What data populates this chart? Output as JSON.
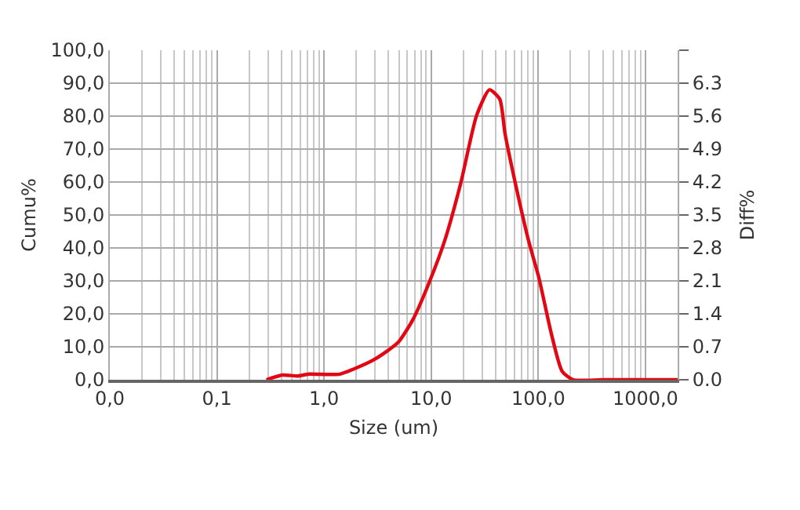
{
  "chart_data": {
    "type": "line",
    "xlabel": "Size (um)",
    "ylabel": "Cumu%",
    "y2label": "Diff%",
    "log": "x",
    "grid": true,
    "marker": "none",
    "line_style": "solid",
    "xlim": [
      0.01,
      2000
    ],
    "xticks": [
      {
        "value": 0.01,
        "label": "0,0"
      },
      {
        "value": 0.1,
        "label": "0,1"
      },
      {
        "value": 1,
        "label": "1,0"
      },
      {
        "value": 10,
        "label": "10,0"
      },
      {
        "value": 100,
        "label": "100,0"
      },
      {
        "value": 1000,
        "label": "1000,0"
      }
    ],
    "ylim": [
      0,
      100
    ],
    "yticks": [
      {
        "value": 0,
        "label": "0,0"
      },
      {
        "value": 10,
        "label": "10,0"
      },
      {
        "value": 20,
        "label": "20,0"
      },
      {
        "value": 30,
        "label": "30,0"
      },
      {
        "value": 40,
        "label": "40,0"
      },
      {
        "value": 50,
        "label": "50,0"
      },
      {
        "value": 60,
        "label": "60,0"
      },
      {
        "value": 70,
        "label": "70,0"
      },
      {
        "value": 80,
        "label": "80,0"
      },
      {
        "value": 90,
        "label": "90,0"
      },
      {
        "value": 100,
        "label": "100,0"
      }
    ],
    "y2lim": [
      0,
      7
    ],
    "y2ticks": [
      {
        "value": 0,
        "label": "0.0"
      },
      0.7,
      1.4,
      2.1,
      2.8,
      3.5,
      4.2,
      4.9,
      5.6,
      6.3,
      {
        "value": 7,
        "label": null
      }
    ],
    "series": [
      {
        "color": "#e30613",
        "axis": "y2",
        "x": [
          0.29,
          0.41,
          0.57,
          0.72,
          1.4,
          2.2,
          3.1,
          4.9,
          6.8,
          9.6,
          13.4,
          18.9,
          26.6,
          35,
          43.7,
          48.9,
          61,
          81,
          101,
          133,
          167,
          212,
          400,
          2000
        ],
        "values": [
          0,
          0.1,
          0.08,
          0.12,
          0.12,
          0.29,
          0.46,
          0.79,
          1.29,
          2.07,
          2.96,
          4.18,
          5.62,
          6.16,
          5.96,
          5.23,
          4.18,
          2.96,
          2.18,
          0.96,
          0.18,
          0,
          0,
          0
        ]
      }
    ]
  }
}
